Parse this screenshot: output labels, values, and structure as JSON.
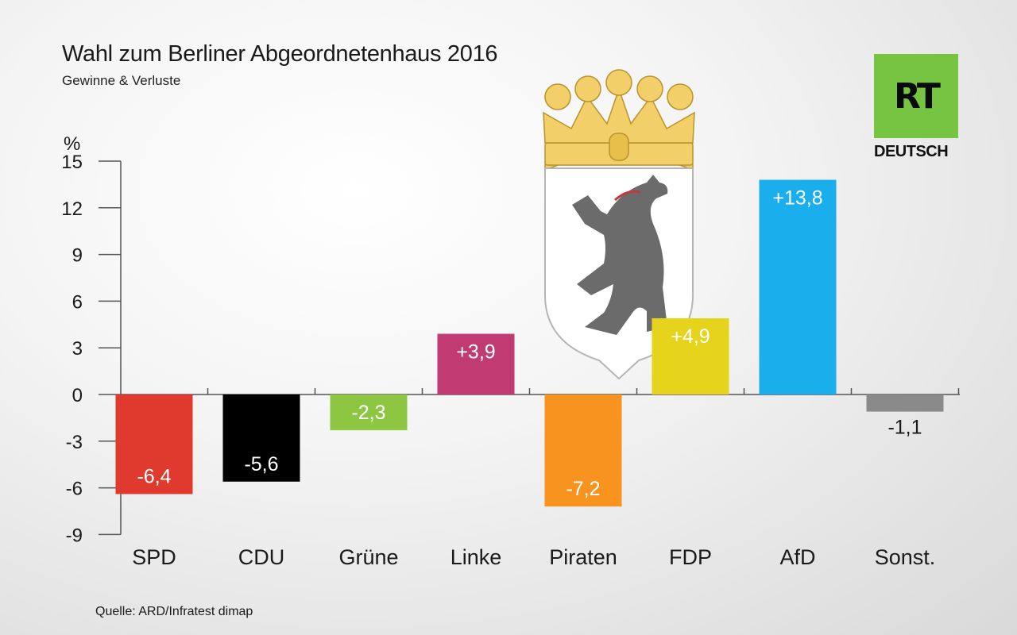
{
  "title": "Wahl zum Berliner Abgeordnetenhaus 2016",
  "subtitle": "Gewinne & Verluste",
  "source": "Quelle: ARD/Infratest dimap",
  "logo": {
    "brand": "RT",
    "sub": "DEUTSCH",
    "color": "#76c442"
  },
  "crest_icon": "berlin-coat-of-arms",
  "chart_data": {
    "type": "bar",
    "title": "Wahl zum Berliner Abgeordnetenhaus 2016",
    "subtitle": "Gewinne & Verluste",
    "ylabel": "%",
    "ylim": [
      -9,
      15
    ],
    "yticks": [
      15,
      12,
      9,
      6,
      3,
      0,
      -3,
      -6,
      -9
    ],
    "categories": [
      "SPD",
      "CDU",
      "Grüne",
      "Linke",
      "Piraten",
      "FDP",
      "AfD",
      "Sonst."
    ],
    "values": [
      -6.4,
      -5.6,
      -2.3,
      3.9,
      -7.2,
      4.9,
      13.8,
      -1.1
    ],
    "value_labels": [
      "-6,4",
      "-5,6",
      "-2,3",
      "+3,9",
      "-7,2",
      "+4,9",
      "+13,8",
      "-1,1"
    ],
    "colors": [
      "#e03a2f",
      "#000000",
      "#8dc641",
      "#c13b72",
      "#f7931e",
      "#e5d41b",
      "#1aaeed",
      "#8a8a8a"
    ],
    "label_colors": [
      "#ffffff",
      "#ffffff",
      "#ffffff",
      "#ffffff",
      "#ffffff",
      "#ffffff",
      "#ffffff",
      "#1a1a1a"
    ],
    "grid": false
  }
}
